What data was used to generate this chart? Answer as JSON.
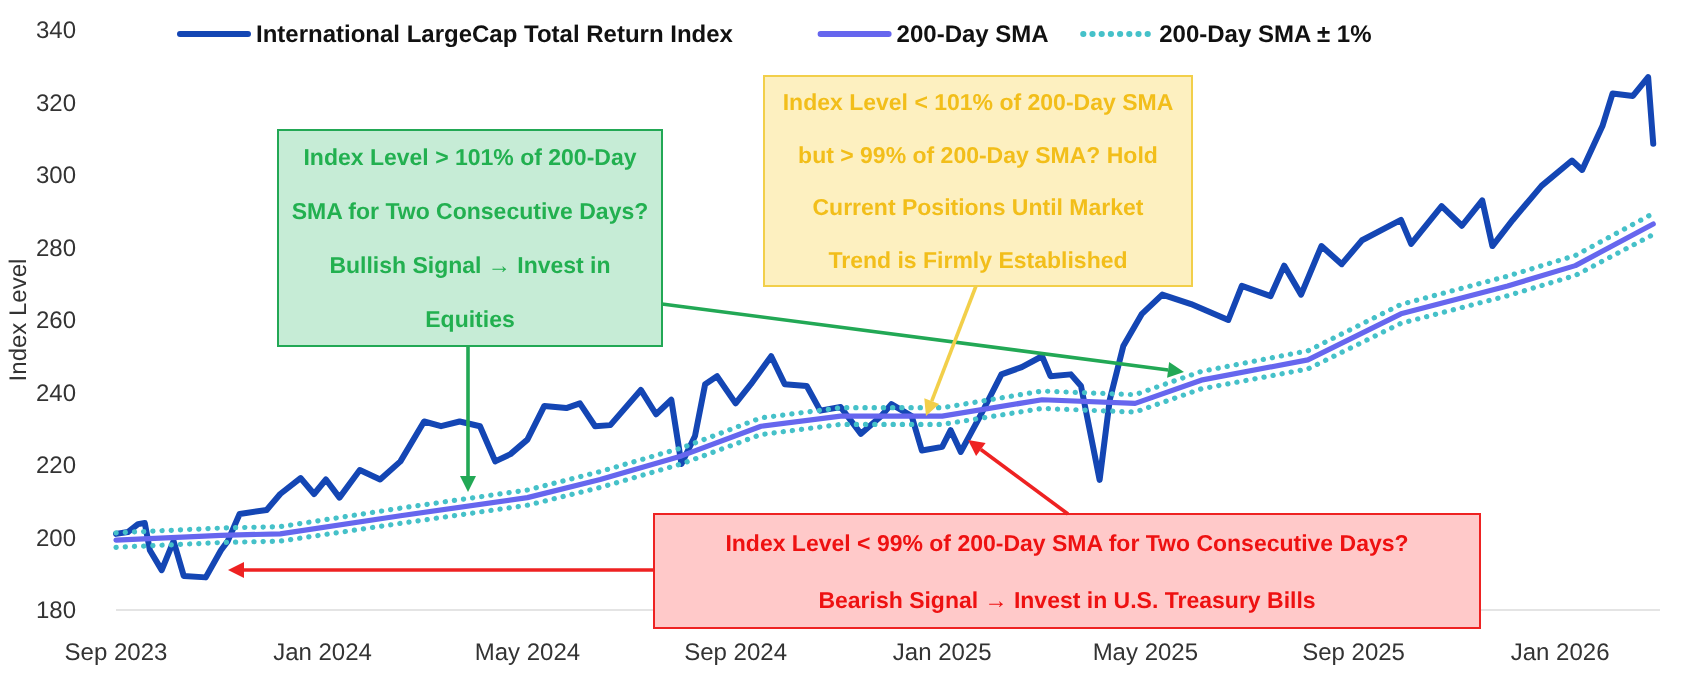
{
  "chart_data": {
    "type": "line",
    "ylabel": "Index Level",
    "legend": "top",
    "grid": false,
    "xlim": [
      "2023-09-01",
      "2026-03-01"
    ],
    "xticks": [
      {
        "value": "2023-09-01",
        "label": "Sep 2023"
      },
      {
        "value": "2024-01-01",
        "label": "Jan 2024"
      },
      {
        "value": "2024-05-01",
        "label": "May 2024"
      },
      {
        "value": "2024-09-01",
        "label": "Sep 2024"
      },
      {
        "value": "2025-01-01",
        "label": "Jan 2025"
      },
      {
        "value": "2025-05-01",
        "label": "May 2025"
      },
      {
        "value": "2025-09-01",
        "label": "Sep 2025"
      },
      {
        "value": "2026-01-01",
        "label": "Jan 2026"
      }
    ],
    "ylim": [
      180,
      340
    ],
    "yticks": [
      180,
      200,
      220,
      240,
      260,
      280,
      300,
      320,
      340
    ],
    "series": [
      {
        "name": "International LargeCap Total Return Index",
        "color": "#1446b4",
        "line_style": "solid",
        "x": [
          "2023-09-01",
          "2023-09-08",
          "2023-09-14",
          "2023-09-18",
          "2023-09-21",
          "2023-09-28",
          "2023-10-05",
          "2023-10-11",
          "2023-10-24",
          "2023-11-02",
          "2023-11-06",
          "2023-11-13",
          "2023-11-29",
          "2023-12-07",
          "2023-12-19",
          "2023-12-27",
          "2024-01-03",
          "2024-01-11",
          "2024-01-23",
          "2024-02-04",
          "2024-02-16",
          "2024-03-01",
          "2024-03-11",
          "2024-03-22",
          "2024-04-03",
          "2024-04-12",
          "2024-04-21",
          "2024-05-01",
          "2024-05-11",
          "2024-05-24",
          "2024-06-01",
          "2024-06-10",
          "2024-06-19",
          "2024-07-07",
          "2024-07-16",
          "2024-07-25",
          "2024-07-31",
          "2024-08-08",
          "2024-08-14",
          "2024-08-21",
          "2024-09-01",
          "2024-09-10",
          "2024-09-22",
          "2024-09-30",
          "2024-10-13",
          "2024-10-21",
          "2024-11-02",
          "2024-11-14",
          "2024-11-26",
          "2024-12-02",
          "2024-12-14",
          "2024-12-20",
          "2025-01-01",
          "2025-01-06",
          "2025-01-12",
          "2025-01-24",
          "2025-02-05",
          "2025-02-17",
          "2025-03-01",
          "2025-03-06",
          "2025-03-18",
          "2025-03-24",
          "2025-04-04",
          "2025-04-10",
          "2025-04-18",
          "2025-04-29",
          "2025-05-11",
          "2025-05-28",
          "2025-06-19",
          "2025-06-27",
          "2025-07-14",
          "2025-07-22",
          "2025-08-01",
          "2025-08-13",
          "2025-08-25",
          "2025-09-06",
          "2025-09-29",
          "2025-10-05",
          "2025-10-23",
          "2025-11-04",
          "2025-11-16",
          "2025-11-22",
          "2025-12-04",
          "2025-12-21",
          "2026-01-08",
          "2026-01-14",
          "2026-01-26",
          "2026-02-01",
          "2026-02-13",
          "2026-02-22",
          "2026-02-25"
        ],
        "values": [
          201,
          201.5,
          203.7,
          204,
          196.5,
          191,
          199,
          189.4,
          189,
          196.5,
          199,
          206.5,
          207.6,
          212,
          216.4,
          212,
          216,
          211,
          218.6,
          216,
          221,
          232,
          230.7,
          232,
          230.7,
          221,
          223,
          227,
          236.3,
          235.7,
          237,
          230.7,
          231,
          240.7,
          234,
          238,
          220.3,
          228,
          242.3,
          244.5,
          237,
          242.3,
          250,
          242.3,
          241.8,
          235,
          236,
          228.6,
          233.5,
          236.8,
          233.5,
          224,
          225,
          229.6,
          223.6,
          234,
          245,
          247,
          250,
          244.5,
          245,
          241.8,
          215.9,
          238,
          252.8,
          261.7,
          267,
          264.4,
          260,
          269.4,
          266.6,
          275,
          267,
          280.4,
          275.4,
          282,
          287.6,
          281,
          291.4,
          286,
          293,
          280.4,
          287.6,
          297,
          304,
          301.4,
          313.5,
          322.5,
          321.8,
          327,
          308.6
        ]
      },
      {
        "name": "200-Day SMA",
        "color": "#6666ee",
        "line_style": "solid",
        "x": [
          "2023-09-01",
          "2023-11-02",
          "2023-12-07",
          "2024-02-16",
          "2024-05-01",
          "2024-06-13",
          "2024-07-31",
          "2024-09-16",
          "2024-11-02",
          "2025-01-01",
          "2025-03-01",
          "2025-04-25",
          "2025-06-03",
          "2025-08-05",
          "2025-09-29",
          "2025-12-01",
          "2026-01-10",
          "2026-02-25"
        ],
        "values": [
          199.3,
          200.6,
          201,
          206,
          211,
          216,
          222.5,
          230.7,
          233.5,
          233.5,
          238,
          237,
          243.4,
          249,
          261.7,
          269.4,
          275,
          286.5
        ]
      },
      {
        "name": "200-Day SMA ± 1%",
        "color": "#45c1c9",
        "line_style": "dotted",
        "x": [
          "2023-09-01",
          "2023-11-02",
          "2023-12-07",
          "2024-02-16",
          "2024-05-01",
          "2024-06-13",
          "2024-07-31",
          "2024-09-16",
          "2024-11-02",
          "2025-01-01",
          "2025-03-01",
          "2025-04-25",
          "2025-06-03",
          "2025-08-05",
          "2025-09-29",
          "2025-12-01",
          "2026-01-10",
          "2026-02-25"
        ],
        "values": [
          201.3,
          202.6,
          203,
          208.1,
          213.1,
          218.2,
          224.7,
          233,
          235.8,
          235.8,
          240.4,
          239.4,
          245.8,
          251.5,
          264.3,
          272.1,
          277.8,
          289.4
        ]
      },
      {
        "color": "#45c1c9",
        "line_style": "dotted",
        "x": [
          "2023-09-01",
          "2023-11-02",
          "2023-12-07",
          "2024-02-16",
          "2024-05-01",
          "2024-06-13",
          "2024-07-31",
          "2024-09-16",
          "2024-11-02",
          "2025-01-01",
          "2025-03-01",
          "2025-04-25",
          "2025-06-03",
          "2025-08-05",
          "2025-09-29",
          "2025-12-01",
          "2026-01-10",
          "2026-02-25"
        ],
        "values": [
          197.3,
          198.6,
          199,
          203.9,
          208.9,
          213.8,
          220.3,
          228.4,
          231.2,
          231.2,
          235.6,
          234.6,
          241,
          246.5,
          259.1,
          266.7,
          272.3,
          283.6
        ]
      }
    ],
    "annotations": [
      "Index Level > 101% of 200-Day SMA for Two Consecutive Days? Bullish Signal → Invest in Equities",
      "Index Level < 101% of 200-Day SMA but > 99% of 200-Day SMA? Hold Current Positions Until Market Trend is Firmly Established",
      "Index Level < 99% of 200-Day SMA for Two Consecutive Days? Bearish Signal → Invest in U.S. Treasury Bills"
    ]
  }
}
